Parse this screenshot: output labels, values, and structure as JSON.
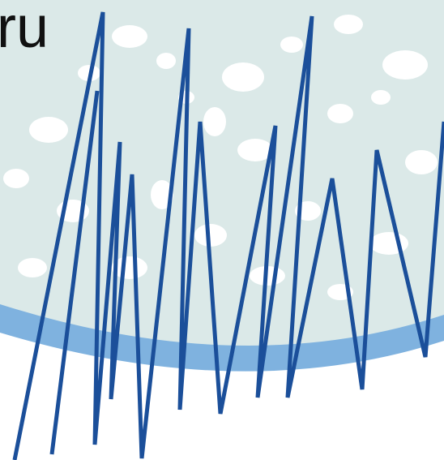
{
  "logo": {
    "text": "ru"
  }
}
